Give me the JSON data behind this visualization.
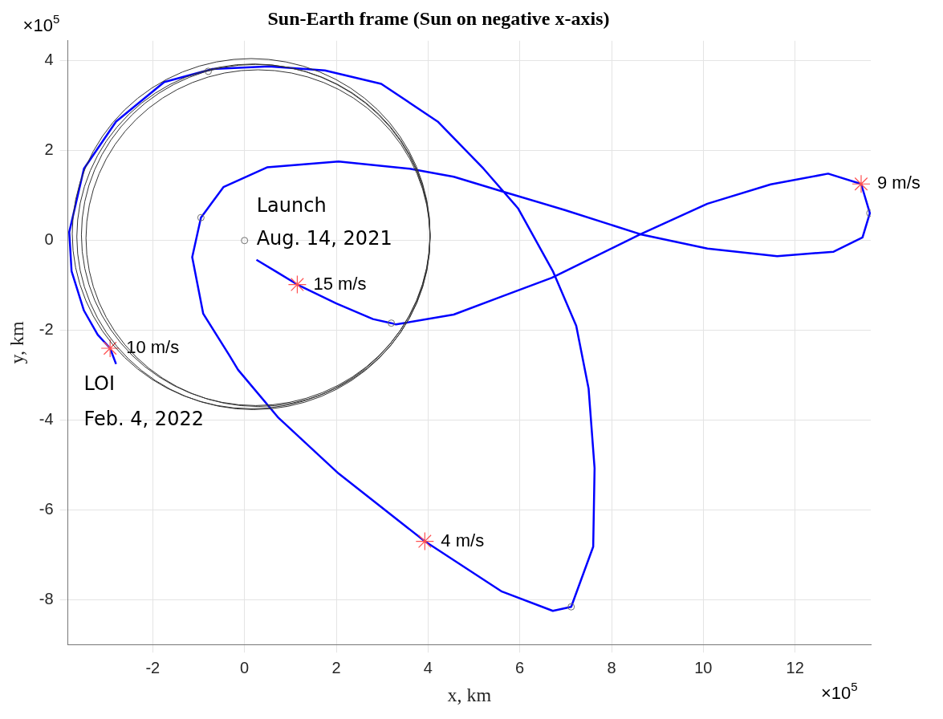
{
  "chart_data": {
    "type": "line",
    "title": "Sun-Earth frame (Sun on negative x-axis)",
    "xlabel": "x, km",
    "ylabel": "y, km",
    "xlim": [
      -3.85,
      13.65
    ],
    "ylim": [
      -9,
      4.45
    ],
    "xticks": [
      -2,
      0,
      2,
      4,
      6,
      8,
      10,
      12
    ],
    "yticks": [
      -8,
      -6,
      -4,
      -2,
      0,
      2,
      4
    ],
    "grid": true,
    "legend": false,
    "annotations": [
      "×10$^{5}$",
      "×10$^{5}$",
      "Launch",
      "Aug. 14, 2021",
      "LOI",
      "Feb. 4, 2022",
      {
        "text": "15 m/s",
        "x": 1.15,
        "y": -0.98
      },
      {
        "text": "9 m/s",
        "x": 13.44,
        "y": 1.26
      },
      {
        "text": "10 m/s",
        "x": -2.93,
        "y": -2.4
      },
      {
        "text": "4 m/s",
        "x": 3.93,
        "y": -6.7
      }
    ],
    "series": [
      {
        "type": "line",
        "color": "#0000ff",
        "marker": "none",
        "x": [
          0.26,
          0.7,
          1.15,
          2.0,
          2.8,
          3.2,
          3.3,
          4.56,
          5.6,
          6.7,
          8.63,
          10.09,
          11.47,
          12.72,
          13.44,
          13.63,
          13.47,
          12.84,
          11.61,
          10.09,
          8.63,
          6.98,
          5.6,
          4.56,
          3.6,
          2.05,
          0.49,
          -0.46,
          -0.95,
          -1.14,
          -0.9,
          -0.33,
          -0.14,
          0.74,
          2.05,
          3.93,
          5.61,
          6.72,
          7.12,
          7.6,
          7.63,
          7.5,
          7.23,
          6.72,
          5.96,
          5.21,
          4.21,
          2.98,
          1.75,
          0.53,
          -0.7,
          -1.75,
          -2.8,
          -3.5,
          -3.82,
          -3.77,
          -3.5,
          -3.2,
          -2.93,
          -2.8
        ],
        "values": [
          -0.43,
          -0.7,
          -0.98,
          -1.4,
          -1.75,
          -1.84,
          -1.87,
          -1.65,
          -1.25,
          -0.83,
          0.14,
          0.82,
          1.25,
          1.49,
          1.26,
          0.61,
          0.07,
          -0.25,
          -0.35,
          -0.18,
          0.14,
          0.68,
          1.1,
          1.42,
          1.6,
          1.76,
          1.63,
          1.19,
          0.51,
          -0.37,
          -1.63,
          -2.56,
          -2.88,
          -3.95,
          -5.19,
          -6.7,
          -7.82,
          -8.25,
          -8.16,
          -6.82,
          -5.07,
          -3.3,
          -1.9,
          -0.68,
          0.72,
          1.6,
          2.65,
          3.49,
          3.79,
          3.88,
          3.82,
          3.53,
          2.65,
          1.6,
          0.19,
          -0.68,
          -1.56,
          -2.1,
          -2.4,
          -2.75
        ]
      },
      {
        "type": "scatter",
        "color": "#6e6e6e",
        "marker": "circle",
        "x": [
          0,
          -0.95,
          -0.79,
          3.2,
          13.63,
          7.12
        ],
        "values": [
          0,
          0.51,
          3.77,
          -1.84,
          0.61,
          -8.16
        ]
      },
      {
        "type": "scatter",
        "color": "#ff5050",
        "marker": "cross",
        "x": [
          1.15,
          13.44,
          -2.93,
          3.93
        ],
        "values": [
          -0.98,
          1.26,
          -2.4,
          -6.7
        ]
      }
    ]
  }
}
